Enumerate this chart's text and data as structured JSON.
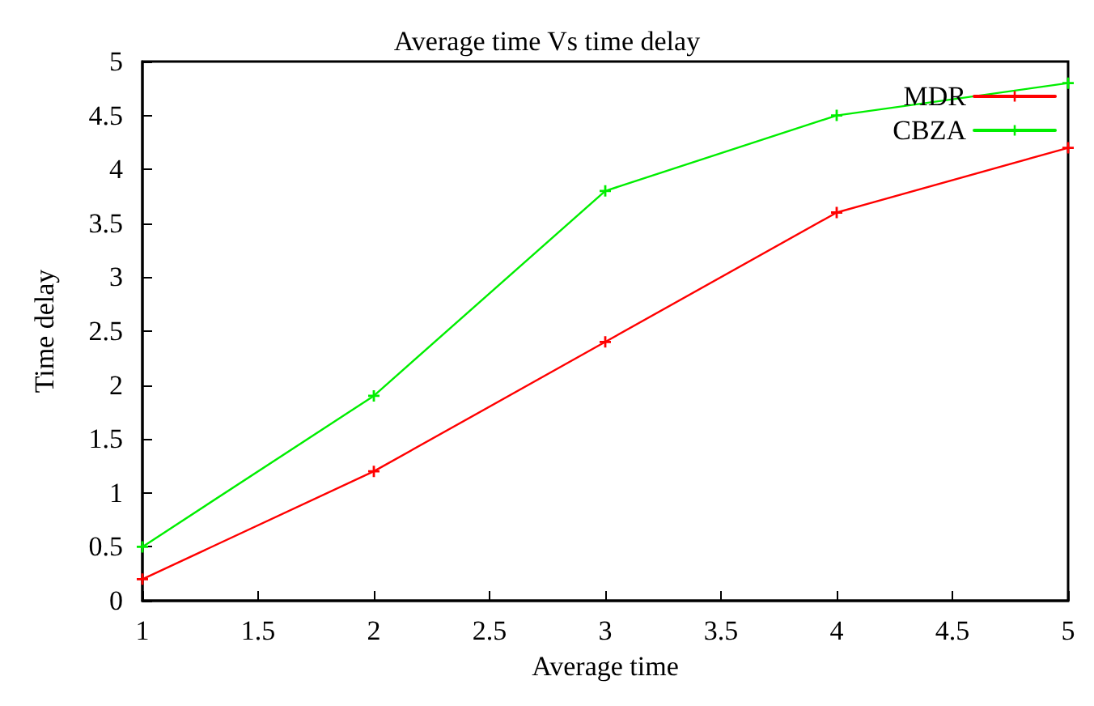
{
  "chart_data": {
    "type": "line",
    "title": "Average time Vs time delay",
    "xlabel": "Average time",
    "ylabel": "Time delay",
    "x": [
      1,
      2,
      3,
      4,
      5
    ],
    "series": [
      {
        "name": "MDR",
        "color": "#ff0000",
        "values": [
          0.2,
          1.2,
          2.4,
          3.6,
          4.2
        ]
      },
      {
        "name": "CBZA",
        "color": "#00ee00",
        "values": [
          0.5,
          1.9,
          3.8,
          4.5,
          4.8
        ]
      }
    ],
    "xlim": [
      1,
      5
    ],
    "xticks": [
      1,
      1.5,
      2,
      2.5,
      3,
      3.5,
      4,
      4.5,
      5
    ],
    "ylim": [
      0,
      5
    ],
    "yticks": [
      0,
      0.5,
      1,
      1.5,
      2,
      2.5,
      3,
      3.5,
      4,
      4.5,
      5
    ],
    "grid": false,
    "legend": "top right",
    "marker": "cross",
    "line_style": "solid"
  }
}
